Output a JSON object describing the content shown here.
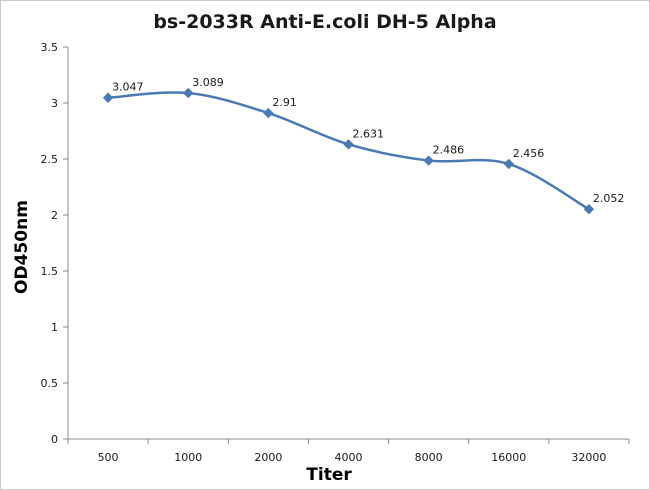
{
  "chart_data": {
    "type": "line",
    "title": "bs-2033R Anti-E.coli DH-5 Alpha",
    "xlabel": "Titer",
    "ylabel": "OD450nm",
    "categories": [
      "500",
      "1000",
      "2000",
      "4000",
      "8000",
      "16000",
      "32000"
    ],
    "series": [
      {
        "values": [
          3.047,
          3.089,
          2.91,
          2.631,
          2.486,
          2.456,
          2.052
        ]
      }
    ],
    "data_labels": [
      "3.047",
      "3.089",
      "2.91",
      "2.631",
      "2.486",
      "2.456",
      "2.052"
    ],
    "ylim": [
      0,
      3.5
    ],
    "yticks": [
      "0",
      "0.5",
      "1",
      "1.5",
      "2",
      "2.5",
      "3",
      "3.5"
    ],
    "grid": false,
    "legend": "none",
    "line_color": "#4a7ab5",
    "marker": "diamond"
  }
}
